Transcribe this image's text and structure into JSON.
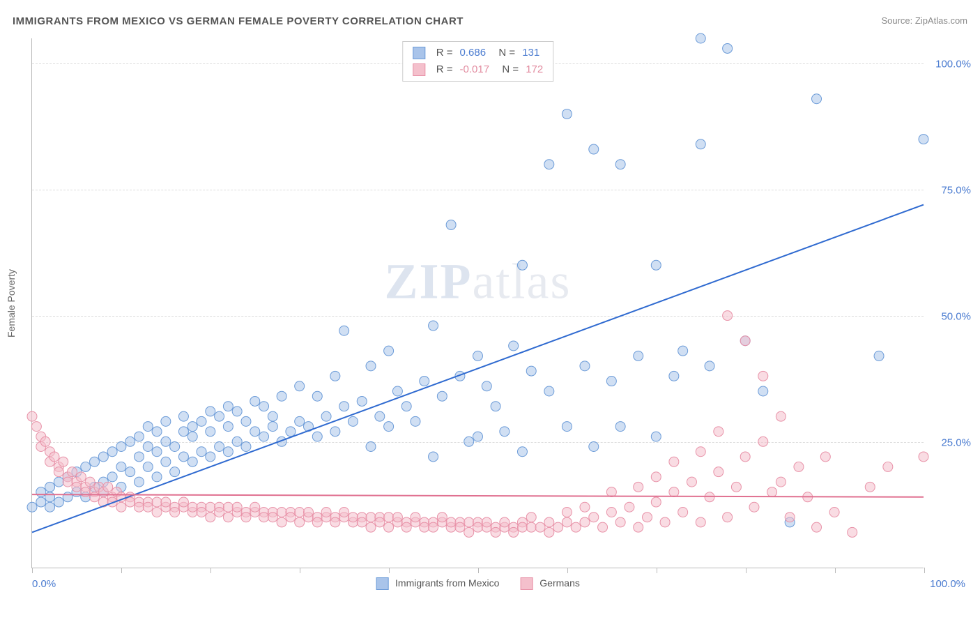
{
  "title": "IMMIGRANTS FROM MEXICO VS GERMAN FEMALE POVERTY CORRELATION CHART",
  "source": "Source: ZipAtlas.com",
  "watermark_main": "ZIP",
  "watermark_sub": "atlas",
  "yaxis_title": "Female Poverty",
  "xaxis": {
    "min_label": "0.0%",
    "max_label": "100.0%",
    "ticks_pct": [
      0,
      10,
      20,
      30,
      40,
      50,
      60,
      70,
      80,
      90,
      100
    ]
  },
  "yaxis": {
    "ticks": [
      {
        "pct": 25,
        "label": "25.0%"
      },
      {
        "pct": 50,
        "label": "50.0%"
      },
      {
        "pct": 75,
        "label": "75.0%"
      },
      {
        "pct": 100,
        "label": "100.0%"
      }
    ]
  },
  "series": [
    {
      "name": "Immigrants from Mexico",
      "color_fill": "#a9c4ea",
      "color_stroke": "#6b9bd8",
      "line_color": "#2f6ad0",
      "marker_radius": 7,
      "marker_opacity": 0.55,
      "line_width": 2,
      "R": "0.686",
      "N": "131",
      "stat_color": "#4a7bd0",
      "regression": {
        "x1": 0,
        "y1": 7,
        "x2": 100,
        "y2": 72
      },
      "points": [
        [
          0,
          12
        ],
        [
          1,
          13
        ],
        [
          1,
          15
        ],
        [
          2,
          12
        ],
        [
          2,
          14
        ],
        [
          2,
          16
        ],
        [
          3,
          13
        ],
        [
          3,
          17
        ],
        [
          4,
          14
        ],
        [
          4,
          18
        ],
        [
          5,
          15
        ],
        [
          5,
          19
        ],
        [
          6,
          14
        ],
        [
          6,
          20
        ],
        [
          7,
          16
        ],
        [
          7,
          21
        ],
        [
          8,
          17
        ],
        [
          8,
          22
        ],
        [
          8,
          15
        ],
        [
          9,
          18
        ],
        [
          9,
          23
        ],
        [
          10,
          16
        ],
        [
          10,
          20
        ],
        [
          10,
          24
        ],
        [
          11,
          19
        ],
        [
          11,
          25
        ],
        [
          12,
          17
        ],
        [
          12,
          22
        ],
        [
          12,
          26
        ],
        [
          13,
          20
        ],
        [
          13,
          24
        ],
        [
          13,
          28
        ],
        [
          14,
          18
        ],
        [
          14,
          23
        ],
        [
          14,
          27
        ],
        [
          15,
          21
        ],
        [
          15,
          25
        ],
        [
          15,
          29
        ],
        [
          16,
          19
        ],
        [
          16,
          24
        ],
        [
          17,
          22
        ],
        [
          17,
          27
        ],
        [
          17,
          30
        ],
        [
          18,
          21
        ],
        [
          18,
          26
        ],
        [
          18,
          28
        ],
        [
          19,
          23
        ],
        [
          19,
          29
        ],
        [
          20,
          22
        ],
        [
          20,
          27
        ],
        [
          20,
          31
        ],
        [
          21,
          24
        ],
        [
          21,
          30
        ],
        [
          22,
          23
        ],
        [
          22,
          28
        ],
        [
          22,
          32
        ],
        [
          23,
          25
        ],
        [
          23,
          31
        ],
        [
          24,
          24
        ],
        [
          24,
          29
        ],
        [
          25,
          27
        ],
        [
          25,
          33
        ],
        [
          26,
          26
        ],
        [
          26,
          32
        ],
        [
          27,
          28
        ],
        [
          27,
          30
        ],
        [
          28,
          25
        ],
        [
          28,
          34
        ],
        [
          29,
          27
        ],
        [
          30,
          29
        ],
        [
          30,
          36
        ],
        [
          31,
          28
        ],
        [
          32,
          26
        ],
        [
          32,
          34
        ],
        [
          33,
          30
        ],
        [
          34,
          27
        ],
        [
          34,
          38
        ],
        [
          35,
          32
        ],
        [
          35,
          47
        ],
        [
          36,
          29
        ],
        [
          37,
          33
        ],
        [
          38,
          24
        ],
        [
          38,
          40
        ],
        [
          39,
          30
        ],
        [
          40,
          28
        ],
        [
          40,
          43
        ],
        [
          41,
          35
        ],
        [
          42,
          32
        ],
        [
          43,
          29
        ],
        [
          44,
          37
        ],
        [
          45,
          22
        ],
        [
          45,
          48
        ],
        [
          46,
          34
        ],
        [
          47,
          68
        ],
        [
          48,
          38
        ],
        [
          49,
          25
        ],
        [
          50,
          26
        ],
        [
          50,
          42
        ],
        [
          51,
          36
        ],
        [
          52,
          32
        ],
        [
          53,
          27
        ],
        [
          54,
          44
        ],
        [
          55,
          23
        ],
        [
          55,
          60
        ],
        [
          56,
          39
        ],
        [
          58,
          35
        ],
        [
          58,
          80
        ],
        [
          60,
          28
        ],
        [
          60,
          90
        ],
        [
          62,
          40
        ],
        [
          63,
          24
        ],
        [
          63,
          83
        ],
        [
          65,
          37
        ],
        [
          66,
          28
        ],
        [
          66,
          80
        ],
        [
          68,
          42
        ],
        [
          70,
          26
        ],
        [
          70,
          60
        ],
        [
          72,
          38
        ],
        [
          73,
          43
        ],
        [
          75,
          84
        ],
        [
          75,
          105
        ],
        [
          76,
          40
        ],
        [
          78,
          103
        ],
        [
          80,
          45
        ],
        [
          82,
          35
        ],
        [
          85,
          9
        ],
        [
          88,
          93
        ],
        [
          95,
          42
        ],
        [
          100,
          85
        ]
      ]
    },
    {
      "name": "Germans",
      "color_fill": "#f4c0cc",
      "color_stroke": "#e892a8",
      "line_color": "#e07090",
      "marker_radius": 7,
      "marker_opacity": 0.55,
      "line_width": 2,
      "R": "-0.017",
      "N": "172",
      "stat_color": "#e28ca0",
      "regression": {
        "x1": 0,
        "y1": 14.5,
        "x2": 100,
        "y2": 14
      },
      "points": [
        [
          0,
          30
        ],
        [
          0.5,
          28
        ],
        [
          1,
          26
        ],
        [
          1,
          24
        ],
        [
          1.5,
          25
        ],
        [
          2,
          23
        ],
        [
          2,
          21
        ],
        [
          2.5,
          22
        ],
        [
          3,
          20
        ],
        [
          3,
          19
        ],
        [
          3.5,
          21
        ],
        [
          4,
          18
        ],
        [
          4,
          17
        ],
        [
          4.5,
          19
        ],
        [
          5,
          17
        ],
        [
          5,
          16
        ],
        [
          5.5,
          18
        ],
        [
          6,
          16
        ],
        [
          6,
          15
        ],
        [
          6.5,
          17
        ],
        [
          7,
          15
        ],
        [
          7,
          14
        ],
        [
          7.5,
          16
        ],
        [
          8,
          15
        ],
        [
          8,
          13
        ],
        [
          8.5,
          16
        ],
        [
          9,
          14
        ],
        [
          9,
          13
        ],
        [
          9.5,
          15
        ],
        [
          10,
          14
        ],
        [
          10,
          12
        ],
        [
          11,
          14
        ],
        [
          11,
          13
        ],
        [
          12,
          13
        ],
        [
          12,
          12
        ],
        [
          13,
          13
        ],
        [
          13,
          12
        ],
        [
          14,
          13
        ],
        [
          14,
          11
        ],
        [
          15,
          12
        ],
        [
          15,
          13
        ],
        [
          16,
          12
        ],
        [
          16,
          11
        ],
        [
          17,
          12
        ],
        [
          17,
          13
        ],
        [
          18,
          11
        ],
        [
          18,
          12
        ],
        [
          19,
          12
        ],
        [
          19,
          11
        ],
        [
          20,
          12
        ],
        [
          20,
          10
        ],
        [
          21,
          12
        ],
        [
          21,
          11
        ],
        [
          22,
          12
        ],
        [
          22,
          10
        ],
        [
          23,
          11
        ],
        [
          23,
          12
        ],
        [
          24,
          11
        ],
        [
          24,
          10
        ],
        [
          25,
          11
        ],
        [
          25,
          12
        ],
        [
          26,
          11
        ],
        [
          26,
          10
        ],
        [
          27,
          11
        ],
        [
          27,
          10
        ],
        [
          28,
          11
        ],
        [
          28,
          9
        ],
        [
          29,
          11
        ],
        [
          29,
          10
        ],
        [
          30,
          11
        ],
        [
          30,
          9
        ],
        [
          31,
          10
        ],
        [
          31,
          11
        ],
        [
          32,
          10
        ],
        [
          32,
          9
        ],
        [
          33,
          10
        ],
        [
          33,
          11
        ],
        [
          34,
          10
        ],
        [
          34,
          9
        ],
        [
          35,
          10
        ],
        [
          35,
          11
        ],
        [
          36,
          9
        ],
        [
          36,
          10
        ],
        [
          37,
          10
        ],
        [
          37,
          9
        ],
        [
          38,
          10
        ],
        [
          38,
          8
        ],
        [
          39,
          10
        ],
        [
          39,
          9
        ],
        [
          40,
          10
        ],
        [
          40,
          8
        ],
        [
          41,
          9
        ],
        [
          41,
          10
        ],
        [
          42,
          9
        ],
        [
          42,
          8
        ],
        [
          43,
          9
        ],
        [
          43,
          10
        ],
        [
          44,
          9
        ],
        [
          44,
          8
        ],
        [
          45,
          9
        ],
        [
          45,
          8
        ],
        [
          46,
          9
        ],
        [
          46,
          10
        ],
        [
          47,
          8
        ],
        [
          47,
          9
        ],
        [
          48,
          9
        ],
        [
          48,
          8
        ],
        [
          49,
          9
        ],
        [
          49,
          7
        ],
        [
          50,
          9
        ],
        [
          50,
          8
        ],
        [
          51,
          8
        ],
        [
          51,
          9
        ],
        [
          52,
          8
        ],
        [
          52,
          7
        ],
        [
          53,
          8
        ],
        [
          53,
          9
        ],
        [
          54,
          8
        ],
        [
          54,
          7
        ],
        [
          55,
          9
        ],
        [
          55,
          8
        ],
        [
          56,
          8
        ],
        [
          56,
          10
        ],
        [
          57,
          8
        ],
        [
          58,
          9
        ],
        [
          58,
          7
        ],
        [
          59,
          8
        ],
        [
          60,
          9
        ],
        [
          60,
          11
        ],
        [
          61,
          8
        ],
        [
          62,
          9
        ],
        [
          62,
          12
        ],
        [
          63,
          10
        ],
        [
          64,
          8
        ],
        [
          65,
          11
        ],
        [
          65,
          15
        ],
        [
          66,
          9
        ],
        [
          67,
          12
        ],
        [
          68,
          8
        ],
        [
          68,
          16
        ],
        [
          69,
          10
        ],
        [
          70,
          13
        ],
        [
          70,
          18
        ],
        [
          71,
          9
        ],
        [
          72,
          15
        ],
        [
          72,
          21
        ],
        [
          73,
          11
        ],
        [
          74,
          17
        ],
        [
          75,
          9
        ],
        [
          75,
          23
        ],
        [
          76,
          14
        ],
        [
          77,
          19
        ],
        [
          77,
          27
        ],
        [
          78,
          10
        ],
        [
          78,
          50
        ],
        [
          79,
          16
        ],
        [
          80,
          22
        ],
        [
          80,
          45
        ],
        [
          81,
          12
        ],
        [
          82,
          25
        ],
        [
          82,
          38
        ],
        [
          83,
          15
        ],
        [
          84,
          17
        ],
        [
          84,
          30
        ],
        [
          85,
          10
        ],
        [
          86,
          20
        ],
        [
          87,
          14
        ],
        [
          88,
          8
        ],
        [
          89,
          22
        ],
        [
          90,
          11
        ],
        [
          92,
          7
        ],
        [
          94,
          16
        ],
        [
          96,
          20
        ],
        [
          100,
          22
        ]
      ]
    }
  ],
  "chart": {
    "xlim": [
      0,
      100
    ],
    "ylim": [
      0,
      105
    ],
    "background_color": "#ffffff",
    "grid_color": "#dcdcdc",
    "axis_color": "#bababa",
    "tick_label_color": "#4a7bd0"
  }
}
